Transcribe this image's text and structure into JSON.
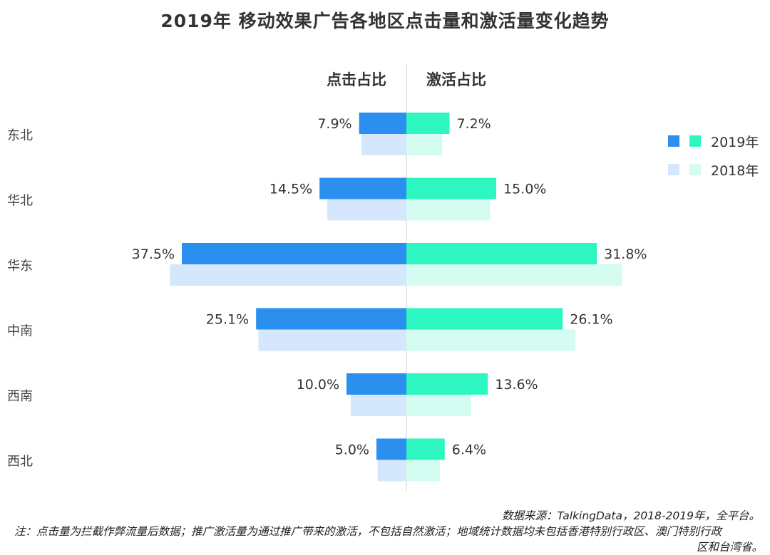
{
  "title": "2019年 移动效果广告各地区点击量和激活量变化趋势",
  "chart_data": {
    "type": "bar",
    "orientation": "horizontal-butterfly",
    "left_header": "点击占比",
    "right_header": "激活占比",
    "categories": [
      "东北",
      "华北",
      "华东",
      "中南",
      "西南",
      "西北"
    ],
    "series": [
      {
        "name": "2019年",
        "side": "点击占比",
        "color": "#2b8ff0",
        "values": [
          7.9,
          14.5,
          37.5,
          25.1,
          10.0,
          5.0
        ],
        "labels": [
          "7.9%",
          "14.5%",
          "37.5%",
          "25.1%",
          "10.0%",
          "5.0%"
        ]
      },
      {
        "name": "2019年",
        "side": "激活占比",
        "color": "#2ef6c0",
        "values": [
          7.2,
          15.0,
          31.8,
          26.1,
          13.6,
          6.4
        ],
        "labels": [
          "7.2%",
          "15.0%",
          "31.8%",
          "26.1%",
          "13.6%",
          "6.4%"
        ]
      },
      {
        "name": "2018年",
        "side": "点击占比",
        "color": "#d4e7fc",
        "values": [
          7.5,
          13.2,
          39.5,
          24.7,
          9.3,
          4.8
        ]
      },
      {
        "name": "2018年",
        "side": "激活占比",
        "color": "#d4fcf0",
        "values": [
          6.0,
          14.0,
          36.0,
          28.2,
          10.8,
          5.6
        ]
      }
    ],
    "legend": {
      "position": "right",
      "entries": [
        "2019年",
        "2018年"
      ]
    },
    "xlim": [
      0,
      40
    ]
  },
  "footer": {
    "source": "数据来源：TalkingData，2018-2019年，全平台。",
    "note_line1": "注：点击量为拦截作弊流量后数据；推广激活量为通过推广带来的激活，不包括自然激活；地域统计数据均未包括香港特别行政区、澳门特别行政",
    "note_line2": "区和台湾省。"
  }
}
